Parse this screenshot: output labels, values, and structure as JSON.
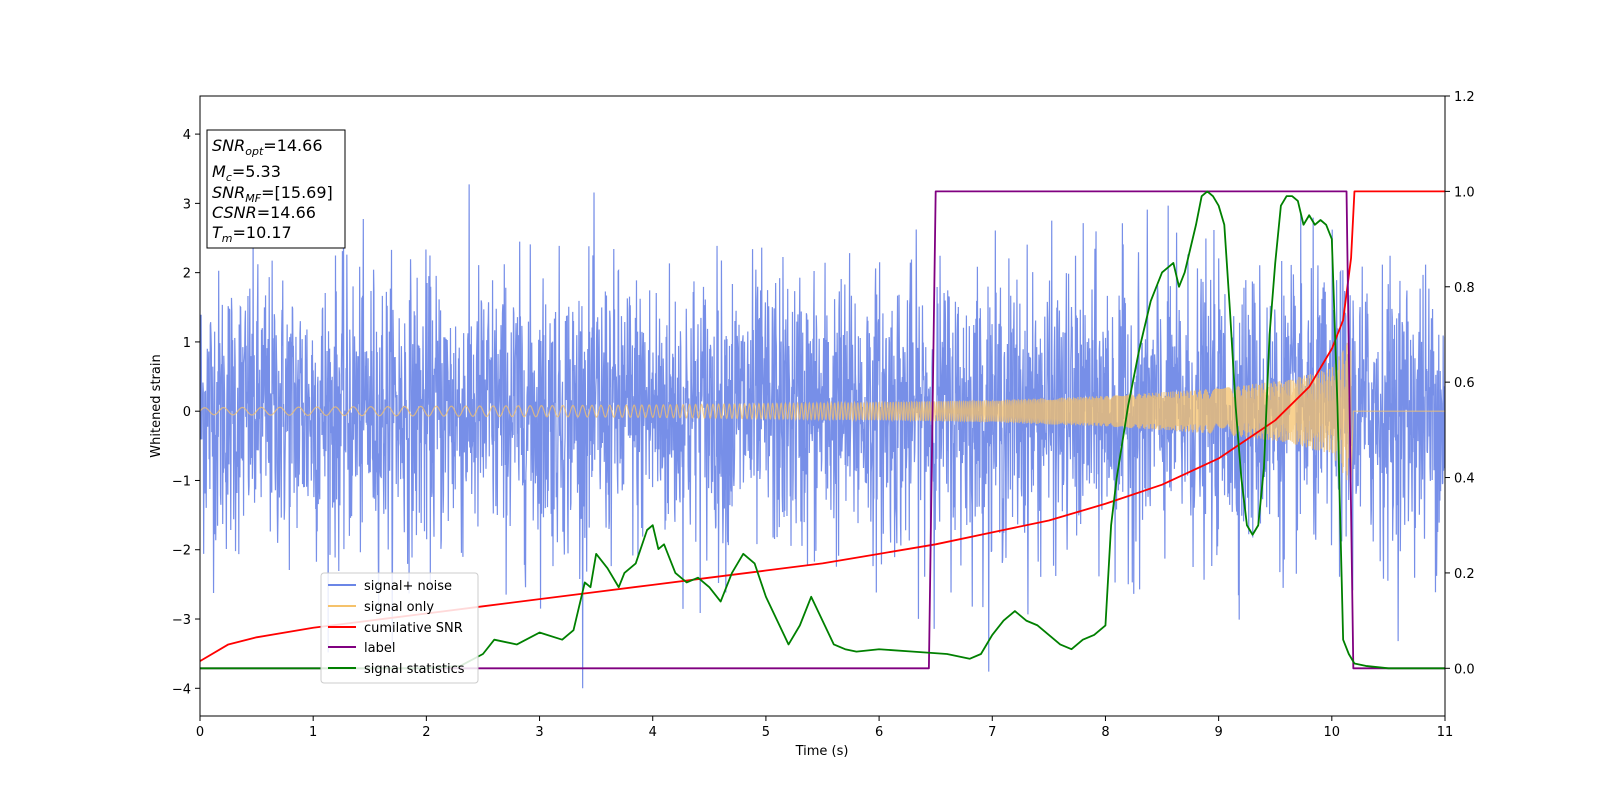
{
  "chart_data": {
    "type": "line",
    "xlabel": "Time (s)",
    "ylabel": "Whitened strain",
    "xlim": [
      0,
      11
    ],
    "ylim_left": [
      -4.4,
      4.55
    ],
    "ylim_right": [
      -0.1,
      1.2
    ],
    "x_ticks": [
      "0",
      "1",
      "2",
      "3",
      "4",
      "5",
      "6",
      "7",
      "8",
      "9",
      "10",
      "11"
    ],
    "y_ticks_left": [
      "−4",
      "−3",
      "−2",
      "−1",
      "0",
      "1",
      "2",
      "3",
      "4"
    ],
    "y_ticks_right": [
      "0.0",
      "0.2",
      "0.4",
      "0.6",
      "0.8",
      "1.0",
      "1.2"
    ],
    "grid": false,
    "legend_position": "lower-left",
    "info_box": {
      "lines": [
        {
          "sym": "SNR",
          "sub": "opt",
          "rest": "=14.66"
        },
        {
          "sym": "M",
          "sub": "c",
          "rest": "=5.33"
        },
        {
          "sym": "SNR",
          "sub": "MF",
          "rest": "=[15.69]"
        },
        {
          "sym": "CSNR",
          "sub": "",
          "rest": "=14.66"
        },
        {
          "sym": "T",
          "sub": "m",
          "rest": "=10.17"
        }
      ]
    },
    "series": [
      {
        "name": "signal+ noise",
        "color": "#6b86e6",
        "axis": "left",
        "kind": "noise",
        "amplitude_sd": 1.0,
        "x_range": [
          0,
          11
        ]
      },
      {
        "name": "signal only",
        "color": "#f5c26b",
        "axis": "left",
        "kind": "chirp",
        "envelope": {
          "x": [
            0,
            2,
            4,
            6,
            7,
            8,
            9,
            9.6,
            10,
            10.17
          ],
          "amp": [
            0.05,
            0.07,
            0.09,
            0.13,
            0.16,
            0.22,
            0.33,
            0.45,
            0.62,
            1.1
          ]
        },
        "end": 10.17
      },
      {
        "name": "cumilative SNR",
        "color": "#ff0000",
        "axis": "right",
        "x": [
          0,
          0.25,
          0.5,
          1,
          1.5,
          2,
          2.5,
          3,
          3.5,
          4,
          4.5,
          5,
          5.5,
          6,
          6.5,
          7,
          7.5,
          8,
          8.5,
          9,
          9.5,
          9.8,
          10,
          10.1,
          10.17,
          10.2,
          11
        ],
        "y": [
          0.015,
          0.05,
          0.065,
          0.085,
          0.1,
          0.115,
          0.13,
          0.145,
          0.16,
          0.175,
          0.19,
          0.205,
          0.22,
          0.24,
          0.26,
          0.285,
          0.31,
          0.345,
          0.385,
          0.44,
          0.52,
          0.59,
          0.67,
          0.73,
          0.86,
          1.0,
          1.0
        ]
      },
      {
        "name": "label",
        "color": "#800080",
        "axis": "right",
        "x": [
          0,
          6.44,
          6.5,
          10.13,
          10.19,
          11
        ],
        "y": [
          0,
          0,
          1,
          1,
          0,
          0
        ]
      },
      {
        "name": "signal statistics",
        "color": "#008000",
        "axis": "right",
        "x": [
          0,
          0.5,
          1,
          1.5,
          2,
          2.3,
          2.5,
          2.6,
          2.8,
          3.0,
          3.2,
          3.3,
          3.4,
          3.45,
          3.5,
          3.6,
          3.7,
          3.75,
          3.85,
          3.95,
          4.0,
          4.05,
          4.1,
          4.2,
          4.3,
          4.4,
          4.5,
          4.6,
          4.7,
          4.8,
          4.9,
          5.0,
          5.1,
          5.2,
          5.3,
          5.4,
          5.5,
          5.6,
          5.7,
          5.8,
          6.0,
          6.3,
          6.6,
          6.8,
          6.9,
          7.0,
          7.1,
          7.2,
          7.3,
          7.4,
          7.5,
          7.6,
          7.7,
          7.8,
          7.9,
          8.0,
          8.05,
          8.1,
          8.2,
          8.3,
          8.4,
          8.5,
          8.6,
          8.65,
          8.7,
          8.75,
          8.8,
          8.85,
          8.9,
          8.95,
          9.0,
          9.05,
          9.1,
          9.15,
          9.2,
          9.25,
          9.3,
          9.35,
          9.4,
          9.45,
          9.5,
          9.55,
          9.6,
          9.65,
          9.7,
          9.75,
          9.8,
          9.85,
          9.9,
          9.95,
          10.0,
          10.05,
          10.1,
          10.15,
          10.2,
          10.3,
          10.5,
          11
        ],
        "y": [
          0.0,
          0.0,
          0.0,
          0.0,
          0.0,
          0.005,
          0.03,
          0.06,
          0.05,
          0.075,
          0.06,
          0.08,
          0.18,
          0.17,
          0.24,
          0.21,
          0.17,
          0.2,
          0.22,
          0.29,
          0.3,
          0.25,
          0.26,
          0.2,
          0.18,
          0.19,
          0.17,
          0.14,
          0.2,
          0.24,
          0.22,
          0.15,
          0.1,
          0.05,
          0.09,
          0.15,
          0.1,
          0.05,
          0.04,
          0.035,
          0.04,
          0.035,
          0.03,
          0.02,
          0.03,
          0.07,
          0.1,
          0.12,
          0.1,
          0.09,
          0.07,
          0.05,
          0.04,
          0.06,
          0.07,
          0.09,
          0.3,
          0.4,
          0.55,
          0.67,
          0.77,
          0.83,
          0.85,
          0.8,
          0.83,
          0.88,
          0.93,
          0.99,
          1.0,
          0.99,
          0.97,
          0.93,
          0.75,
          0.55,
          0.4,
          0.3,
          0.28,
          0.3,
          0.42,
          0.7,
          0.85,
          0.97,
          0.99,
          0.99,
          0.98,
          0.93,
          0.95,
          0.93,
          0.94,
          0.93,
          0.9,
          0.55,
          0.06,
          0.03,
          0.01,
          0.005,
          0.0,
          0.0
        ]
      }
    ]
  }
}
